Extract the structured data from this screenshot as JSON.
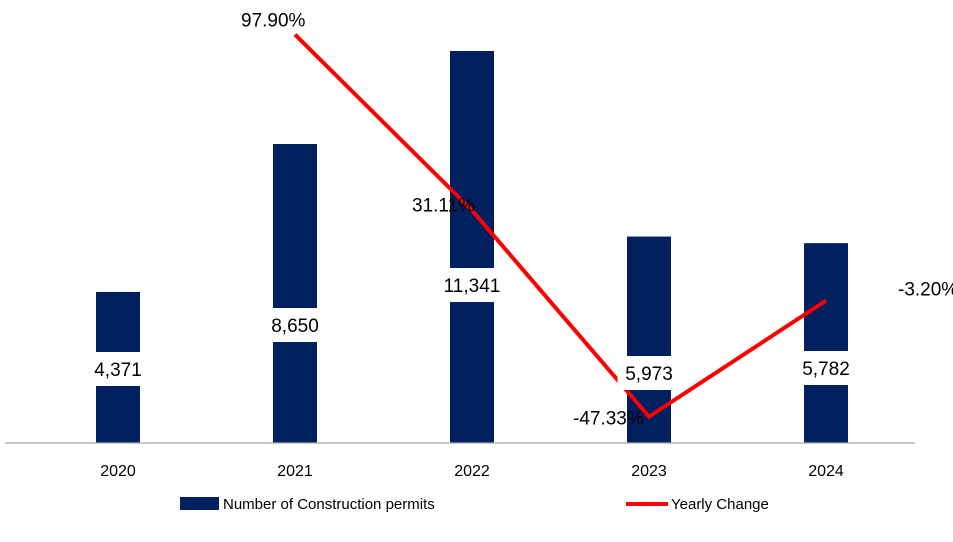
{
  "chart_data": {
    "type": "bar",
    "title": "",
    "xlabel": "",
    "ylabel": "",
    "categories": [
      "2020",
      "2021",
      "2022",
      "2023",
      "2024"
    ],
    "ylim": [
      0,
      11341
    ],
    "series": [
      {
        "name": "Number of Construction permits",
        "type": "bar",
        "values": [
          4371,
          8650,
          11341,
          5973,
          5782
        ],
        "labels": [
          "4,371",
          "8,650",
          "11,341",
          "5,973",
          "5,782"
        ],
        "color": "#002060"
      },
      {
        "name": "Yearly Change",
        "type": "line",
        "x": [
          "2021",
          "2022",
          "2023",
          "2024"
        ],
        "values": [
          97.9,
          31.11,
          -47.33,
          -3.2
        ],
        "labels": [
          "97.90%",
          "31.11%",
          "-47.33%",
          "-3.20%"
        ],
        "color": "#ff0000",
        "ylim": [
          -60,
          100
        ]
      }
    ],
    "legend": {
      "position": "bottom",
      "items": [
        {
          "label": "Number of Construction permits",
          "kind": "bar",
          "color": "#002060"
        },
        {
          "label": "Yearly Change",
          "kind": "line",
          "color": "#ff0000"
        }
      ]
    },
    "grid": false
  }
}
